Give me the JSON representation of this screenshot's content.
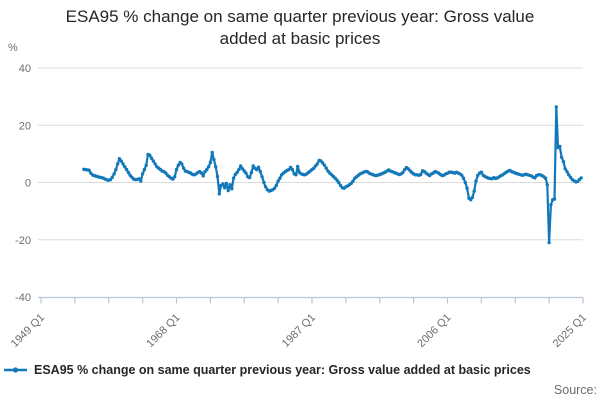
{
  "title": "ESA95 % change on same quarter previous year: Gross value added at basic prices",
  "y_unit_label": "%",
  "legend": {
    "label": "ESA95 % change on same quarter previous year: Gross value added at basic prices"
  },
  "source": {
    "label": "Source:"
  },
  "colors": {
    "line": "#1378b9",
    "grid": "#dcdcdc",
    "axis": "#b9c5d8",
    "tick_text": "#6d6d6d",
    "title_text": "#262626"
  },
  "chart_data": {
    "type": "line",
    "title": "ESA95 % change on same quarter previous year: Gross value added at basic prices",
    "xlabel": "",
    "ylabel": "%",
    "ylim": [
      -40,
      40
    ],
    "yticks": [
      40,
      20,
      0,
      -20,
      -40
    ],
    "grid": "horizontal",
    "legend_position": "bottom",
    "markers": true,
    "x_axis": {
      "start": "1949 Q1",
      "end": "2025 Q1",
      "major_tick_labels": [
        "1949 Q1",
        "1968 Q1",
        "1987 Q1",
        "2006 Q1",
        "2025 Q1"
      ],
      "minor_ticks_between_major": 3
    },
    "series": [
      {
        "name": "ESA95 % change on same quarter previous year: Gross value added at basic prices",
        "start": "1955 Q1",
        "frequency": "quarterly",
        "values": [
          4.6,
          4.5,
          4.4,
          4.3,
          3.2,
          2.6,
          2.4,
          2.2,
          2.0,
          1.8,
          1.7,
          1.5,
          1.2,
          0.9,
          0.8,
          1.0,
          1.8,
          3.0,
          4.5,
          6.5,
          8.3,
          7.5,
          6.5,
          5.5,
          4.5,
          3.5,
          2.5,
          1.8,
          1.2,
          1.0,
          1.1,
          1.3,
          0.5,
          3.0,
          4.5,
          6.0,
          9.8,
          9.5,
          8.5,
          7.5,
          6.5,
          5.5,
          5.0,
          4.5,
          4.0,
          3.8,
          3.3,
          2.5,
          2.0,
          1.5,
          1.2,
          2.0,
          4.5,
          6.0,
          7.0,
          6.5,
          5.0,
          4.0,
          3.8,
          3.5,
          3.3,
          2.8,
          2.7,
          3.0,
          3.5,
          3.8,
          3.3,
          2.3,
          3.8,
          4.5,
          5.5,
          7.0,
          10.5,
          8.0,
          5.5,
          2.1,
          -4.0,
          -1.0,
          -0.5,
          -1.8,
          -0.3,
          -2.8,
          -0.8,
          -2.2,
          1.5,
          2.8,
          3.5,
          4.5,
          5.8,
          4.8,
          4.0,
          3.3,
          2.0,
          1.7,
          3.5,
          5.8,
          5.0,
          4.5,
          5.3,
          3.8,
          2.0,
          0.0,
          -1.5,
          -2.5,
          -3.0,
          -2.8,
          -2.5,
          -2.0,
          -1.0,
          0.5,
          1.5,
          2.7,
          3.3,
          3.8,
          4.2,
          4.5,
          5.3,
          4.5,
          3.0,
          2.7,
          5.6,
          3.5,
          3.0,
          2.8,
          2.7,
          3.0,
          3.5,
          4.0,
          4.5,
          5.0,
          5.8,
          6.5,
          7.7,
          7.5,
          6.8,
          6.0,
          5.0,
          4.0,
          3.3,
          2.7,
          2.1,
          1.5,
          0.8,
          0.0,
          -1.0,
          -1.8,
          -2.0,
          -1.5,
          -1.2,
          -0.8,
          -0.3,
          0.5,
          1.5,
          2.0,
          2.5,
          3.0,
          3.3,
          3.6,
          3.8,
          3.8,
          3.3,
          3.0,
          2.8,
          2.5,
          2.4,
          2.6,
          2.8,
          3.0,
          3.3,
          3.6,
          4.0,
          4.4,
          4.0,
          3.8,
          3.5,
          3.3,
          3.0,
          2.8,
          3.0,
          3.5,
          4.5,
          5.2,
          4.8,
          4.1,
          3.5,
          3.0,
          2.7,
          2.7,
          2.5,
          2.8,
          4.1,
          3.8,
          3.3,
          2.8,
          2.4,
          3.0,
          3.3,
          3.8,
          3.6,
          3.3,
          2.8,
          2.4,
          2.6,
          3.0,
          3.2,
          3.6,
          3.6,
          3.5,
          3.3,
          3.6,
          3.3,
          3.0,
          2.5,
          1.5,
          0.0,
          -2.0,
          -5.5,
          -6.0,
          -5.2,
          -3.0,
          0.5,
          2.5,
          3.3,
          3.6,
          2.5,
          2.1,
          1.8,
          1.5,
          1.4,
          1.3,
          1.7,
          1.4,
          1.6,
          2.0,
          2.4,
          2.7,
          3.2,
          3.6,
          4.0,
          4.2,
          3.8,
          3.6,
          3.3,
          3.1,
          2.9,
          2.7,
          2.5,
          2.7,
          2.9,
          2.7,
          2.5,
          2.3,
          1.9,
          1.6,
          2.4,
          2.7,
          2.7,
          2.4,
          2.0,
          1.5,
          -0.8,
          -21.0,
          -7.8,
          -6.0,
          -5.8,
          26.4,
          12.2,
          12.6,
          8.8,
          7.3,
          4.8,
          3.8,
          2.7,
          1.8,
          1.0,
          0.6,
          0.2,
          0.4,
          1.0,
          1.6
        ]
      }
    ]
  }
}
